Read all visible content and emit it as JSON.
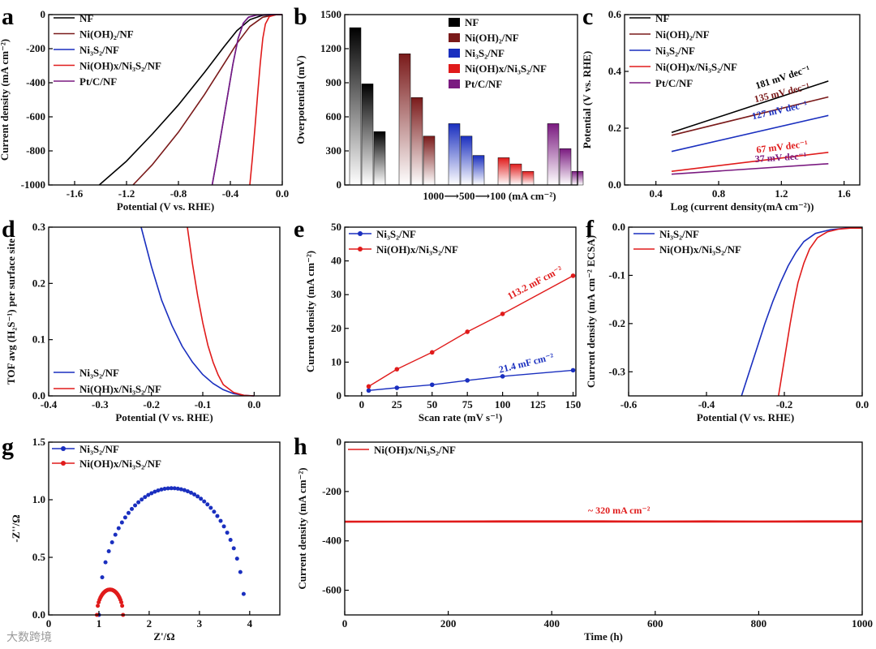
{
  "colors": {
    "NF": "#000000",
    "Ni(OH)2/NF": "#7a1a1a",
    "Ni3S2/NF": "#1a2fbf",
    "Ni(OH)x/Ni3S2/NF": "#e01b1b",
    "Pt/C/NF": "#7a1a80"
  },
  "watermark": "大数跨境",
  "chart_data": [
    {
      "panel": "a",
      "type": "line",
      "xlabel": "Potential (V vs. RHE)",
      "ylabel": "Current density (mA cm⁻²)",
      "xlim": [
        -1.8,
        0.0
      ],
      "ylim": [
        -1000,
        0
      ],
      "xticks": [
        "-1.6",
        "-1.2",
        "-0.8",
        "-0.4",
        "0.0"
      ],
      "xtick_values": [
        -1.6,
        -1.2,
        -0.8,
        -0.4,
        0.0
      ],
      "yticks": [
        "0",
        "-200",
        "-400",
        "-600",
        "-800",
        "-1000"
      ],
      "ytick_values": [
        0,
        -200,
        -400,
        -600,
        -800,
        -1000
      ],
      "legend": [
        "NF",
        "Ni(OH)₂/NF",
        "Ni₃S₂/NF",
        "Ni(OH)x/Ni₃S₂/NF",
        "Pt/C/NF"
      ],
      "series": [
        {
          "name": "NF",
          "x": [
            -1.41,
            -1.2,
            -1.0,
            -0.8,
            -0.6,
            -0.45,
            -0.35,
            -0.25,
            -0.15,
            -0.05,
            0.0
          ],
          "y": [
            -1000,
            -860,
            -700,
            -530,
            -340,
            -190,
            -95,
            -30,
            -4,
            0,
            0
          ]
        },
        {
          "name": "Ni(OH)2/NF",
          "x": [
            -1.15,
            -1.0,
            -0.8,
            -0.6,
            -0.45,
            -0.35,
            -0.25,
            -0.15,
            -0.05,
            0.0
          ],
          "y": [
            -1000,
            -880,
            -690,
            -470,
            -290,
            -170,
            -70,
            -15,
            -1,
            0
          ]
        },
        {
          "name": "Ni3S2/NF",
          "x": [
            -0.54,
            -0.5,
            -0.46,
            -0.42,
            -0.38,
            -0.34,
            -0.3,
            -0.26,
            -0.2,
            -0.1,
            0.0
          ],
          "y": [
            -1000,
            -830,
            -650,
            -470,
            -290,
            -140,
            -50,
            -15,
            -3,
            0,
            0
          ]
        },
        {
          "name": "Ni(OH)x/Ni3S2/NF",
          "x": [
            -0.25,
            -0.23,
            -0.21,
            -0.19,
            -0.17,
            -0.15,
            -0.13,
            -0.1,
            -0.05,
            0.0
          ],
          "y": [
            -1000,
            -840,
            -660,
            -470,
            -290,
            -140,
            -55,
            -12,
            -1,
            0
          ]
        },
        {
          "name": "Pt/C/NF",
          "x": [
            -0.54,
            -0.5,
            -0.46,
            -0.42,
            -0.38,
            -0.34,
            -0.3,
            -0.26,
            -0.2,
            -0.1,
            0.0
          ],
          "y": [
            -1000,
            -830,
            -650,
            -470,
            -290,
            -140,
            -50,
            -15,
            -3,
            0,
            0
          ]
        }
      ]
    },
    {
      "panel": "b",
      "type": "bar",
      "ylabel": "Overpotential (mV)",
      "xlabel": "1000⟶500⟶100 (mA cm⁻²)",
      "ylim": [
        0,
        1500
      ],
      "yticks": [
        "0",
        "300",
        "600",
        "900",
        "1200",
        "1500"
      ],
      "ytick_values": [
        0,
        300,
        600,
        900,
        1200,
        1500
      ],
      "legend": [
        "NF",
        "Ni(OH)₂/NF",
        "Ni₃S₂/NF",
        "Ni(OH)x/Ni₃S₂/NF",
        "Pt/C/NF"
      ],
      "groups": [
        {
          "name": "NF",
          "values": [
            1385,
            890,
            470
          ]
        },
        {
          "name": "Ni(OH)2/NF",
          "values": [
            1155,
            770,
            430
          ]
        },
        {
          "name": "Ni3S2/NF",
          "values": [
            540,
            430,
            260
          ]
        },
        {
          "name": "Ni(OH)x/Ni3S2/NF",
          "values": [
            240,
            185,
            120
          ]
        },
        {
          "name": "Pt/C/NF",
          "values": [
            540,
            320,
            120
          ]
        }
      ]
    },
    {
      "panel": "c",
      "type": "line",
      "xlabel": "Log (current density(mA cm⁻²))",
      "ylabel": "Potential (V vs. RHE)",
      "xlim": [
        0.2,
        1.7
      ],
      "ylim": [
        0.0,
        0.6
      ],
      "xticks": [
        "0.4",
        "0.8",
        "1.2",
        "1.6"
      ],
      "xtick_values": [
        0.4,
        0.8,
        1.2,
        1.6
      ],
      "yticks": [
        "0.0",
        "0.2",
        "0.4",
        "0.6"
      ],
      "ytick_values": [
        0.0,
        0.2,
        0.4,
        0.6
      ],
      "legend": [
        "NF",
        "Ni(OH)₂/NF",
        "Ni₃S₂/NF",
        "Ni(OH)x/Ni₃S₂/NF",
        "Pt/C/NF"
      ],
      "series": [
        {
          "name": "NF",
          "x": [
            0.5,
            1.5
          ],
          "y": [
            0.185,
            0.366
          ],
          "slope_label": "181 mV dec⁻¹"
        },
        {
          "name": "Ni(OH)2/NF",
          "x": [
            0.5,
            1.5
          ],
          "y": [
            0.175,
            0.31
          ],
          "slope_label": "135 mV dec⁻¹"
        },
        {
          "name": "Ni3S2/NF",
          "x": [
            0.5,
            1.5
          ],
          "y": [
            0.118,
            0.245
          ],
          "slope_label": "127 mV dec⁻¹"
        },
        {
          "name": "Ni(OH)x/Ni3S2/NF",
          "x": [
            0.5,
            1.5
          ],
          "y": [
            0.048,
            0.115
          ],
          "slope_label": "67 mV dec⁻¹"
        },
        {
          "name": "Pt/C/NF",
          "x": [
            0.5,
            1.5
          ],
          "y": [
            0.038,
            0.075
          ],
          "slope_label": "37 mV dec⁻¹"
        }
      ]
    },
    {
      "panel": "d",
      "type": "line",
      "xlabel": "Potential (V vs. RHE)",
      "ylabel": "TOF avg (H₂S⁻¹) per surface site",
      "xlim": [
        -0.4,
        0.05
      ],
      "ylim": [
        0.0,
        0.3
      ],
      "xticks": [
        "-0.4",
        "-0.3",
        "-0.2",
        "-0.1",
        "0.0"
      ],
      "xtick_values": [
        -0.4,
        -0.3,
        -0.2,
        -0.1,
        0.0
      ],
      "yticks": [
        "0.0",
        "0.1",
        "0.2",
        "0.3"
      ],
      "ytick_values": [
        0.0,
        0.1,
        0.2,
        0.3
      ],
      "legend": [
        "Ni₃S₂/NF",
        "Ni(OH)x/Ni₃S₂/NF"
      ],
      "series": [
        {
          "name": "Ni3S2/NF",
          "x": [
            -0.22,
            -0.2,
            -0.18,
            -0.16,
            -0.14,
            -0.12,
            -0.1,
            -0.08,
            -0.06,
            -0.04,
            -0.02,
            0.0
          ],
          "y": [
            0.3,
            0.23,
            0.17,
            0.125,
            0.088,
            0.06,
            0.038,
            0.022,
            0.011,
            0.004,
            0.001,
            0.0
          ]
        },
        {
          "name": "Ni(OH)x/Ni3S2/NF",
          "x": [
            -0.13,
            -0.12,
            -0.11,
            -0.1,
            -0.09,
            -0.08,
            -0.07,
            -0.06,
            -0.04,
            -0.02,
            0.0
          ],
          "y": [
            0.3,
            0.235,
            0.178,
            0.13,
            0.09,
            0.06,
            0.037,
            0.02,
            0.006,
            0.001,
            0.0
          ]
        }
      ]
    },
    {
      "panel": "e",
      "type": "line",
      "xlabel": "Scan rate (mV s⁻¹)",
      "ylabel": "Current density (mA cm⁻²)",
      "xlim": [
        -12,
        152
      ],
      "ylim": [
        0,
        50
      ],
      "xticks": [
        "0",
        "25",
        "50",
        "75",
        "100",
        "125",
        "150"
      ],
      "xtick_values": [
        0,
        25,
        50,
        75,
        100,
        125,
        150
      ],
      "yticks": [
        "0",
        "10",
        "20",
        "30",
        "40",
        "50"
      ],
      "ytick_values": [
        0,
        10,
        20,
        30,
        40,
        50
      ],
      "legend": [
        "Ni₃S₂/NF",
        "Ni(OH)x/Ni₃S₂/NF"
      ],
      "series": [
        {
          "name": "Ni3S2/NF",
          "x": [
            5,
            25,
            50,
            75,
            100,
            150
          ],
          "y": [
            1.6,
            2.4,
            3.3,
            4.6,
            5.8,
            7.6
          ],
          "slope_label": "21.4 mF cm⁻²"
        },
        {
          "name": "Ni(OH)x/Ni3S2/NF",
          "x": [
            5,
            25,
            50,
            75,
            100,
            150
          ],
          "y": [
            2.8,
            7.9,
            12.9,
            19.0,
            24.3,
            35.6
          ],
          "slope_label": "113.2 mF cm⁻²"
        }
      ]
    },
    {
      "panel": "f",
      "type": "line",
      "xlabel": "Potential (V vs. RHE)",
      "ylabel": "Current density (mA cm⁻² ECSA)",
      "xlim": [
        -0.6,
        0.0
      ],
      "ylim": [
        -0.35,
        0.0
      ],
      "xticks": [
        "-0.6",
        "-0.4",
        "-0.2",
        "0.0"
      ],
      "xtick_values": [
        -0.6,
        -0.4,
        -0.2,
        0.0
      ],
      "yticks": [
        "0.0",
        "-0.1",
        "-0.2",
        "-0.3"
      ],
      "ytick_values": [
        0.0,
        -0.1,
        -0.2,
        -0.3
      ],
      "legend": [
        "Ni₃S₂/NF",
        "Ni(OH)x/Ni₃S₂/NF"
      ],
      "series": [
        {
          "name": "Ni3S2/NF",
          "x": [
            -0.31,
            -0.29,
            -0.27,
            -0.25,
            -0.23,
            -0.21,
            -0.19,
            -0.17,
            -0.15,
            -0.12,
            -0.08,
            -0.04,
            0.0
          ],
          "y": [
            -0.35,
            -0.3,
            -0.25,
            -0.2,
            -0.155,
            -0.115,
            -0.08,
            -0.052,
            -0.03,
            -0.013,
            -0.005,
            -0.002,
            -0.002
          ]
        },
        {
          "name": "Ni(OH)x/Ni3S2/NF",
          "x": [
            -0.215,
            -0.205,
            -0.195,
            -0.185,
            -0.175,
            -0.165,
            -0.15,
            -0.135,
            -0.115,
            -0.09,
            -0.06,
            -0.03,
            0.0
          ],
          "y": [
            -0.35,
            -0.3,
            -0.25,
            -0.2,
            -0.155,
            -0.115,
            -0.075,
            -0.045,
            -0.022,
            -0.01,
            -0.004,
            -0.002,
            -0.002
          ]
        }
      ]
    },
    {
      "panel": "g",
      "type": "scatter",
      "xlabel": "Z'/Ω",
      "ylabel": "-Z''/Ω",
      "xlim": [
        0,
        4.6
      ],
      "ylim": [
        0,
        1.5
      ],
      "xticks": [
        "0",
        "1",
        "2",
        "3",
        "4"
      ],
      "xtick_values": [
        0,
        1,
        2,
        3,
        4
      ],
      "yticks": [
        "0.0",
        "0.5",
        "1.0",
        "1.5"
      ],
      "ytick_values": [
        0.0,
        0.5,
        1.0,
        1.5
      ],
      "legend": [
        "Ni₃S₂/NF",
        "Ni(OH)x/Ni₃S₂/NF"
      ],
      "series": [
        {
          "name": "Ni3S2/NF",
          "center": 2.45,
          "radius": 1.45,
          "height": 1.1,
          "x_start": 1.0,
          "x_end": 3.88
        },
        {
          "name": "Ni(OH)x/Ni3S2/NF",
          "center": 1.22,
          "radius": 0.26,
          "height": 0.22,
          "x_start": 0.96,
          "x_end": 1.48
        }
      ]
    },
    {
      "panel": "h",
      "type": "line",
      "xlabel": "Time (h)",
      "ylabel": "Current density (mA cm⁻²)",
      "xlim": [
        0,
        1000
      ],
      "ylim": [
        -700,
        0
      ],
      "xticks": [
        "0",
        "200",
        "400",
        "600",
        "800",
        "1000"
      ],
      "xtick_values": [
        0,
        200,
        400,
        600,
        800,
        1000
      ],
      "yticks": [
        "0",
        "-200",
        "-400",
        "-600"
      ],
      "ytick_values": [
        0,
        -200,
        -400,
        -600
      ],
      "legend": [
        "Ni(OH)x/Ni₃S₂/NF"
      ],
      "annotation": "~ 320 mA cm⁻²",
      "series": [
        {
          "name": "Ni(OH)x/Ni3S2/NF",
          "x": [
            0,
            100,
            200,
            300,
            400,
            500,
            600,
            700,
            800,
            900,
            1000
          ],
          "y": [
            -323,
            -322,
            -321,
            -320,
            -320,
            -320,
            -321,
            -320,
            -321,
            -320,
            -320
          ]
        }
      ]
    }
  ]
}
